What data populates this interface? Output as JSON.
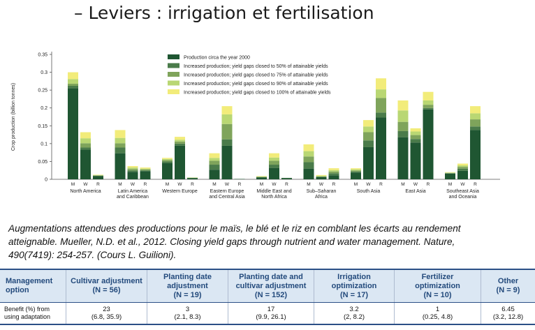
{
  "slide": {
    "title": "– Leviers : irrigation et fertilisation"
  },
  "caption": {
    "line1": "Augmentations attendues des productions pour le maïs, le blé et le riz en comblant les écarts au rendement",
    "line2": "atteignable. Mueller, N.D. et al., 2012. Closing yield gaps through nutrient and water management. Nature,",
    "line3": "490(7419): 254-257. (Cours L. Guilioni)."
  },
  "colors": {
    "base": "#1f5632",
    "gap50": "#4a7b4a",
    "gap75": "#7fa45b",
    "gap90": "#b9d773",
    "gap100": "#f2ec7a",
    "table_header_bg": "#dbe7f3",
    "table_header_text": "#234a7c",
    "table_rule": "#2b4f86"
  },
  "chart_data": {
    "type": "bar",
    "stacked": true,
    "ylabel": "Crop production (billion tonnes)",
    "ylim": [
      0,
      0.35
    ],
    "yticks": [
      "0",
      "0.05",
      "0.1",
      "0.15",
      "0.2",
      "0.25",
      "0.3",
      "0.35"
    ],
    "legend_position": "top-right",
    "crops": [
      "M",
      "W",
      "R"
    ],
    "regions": [
      {
        "name": "North America",
        "lines": [
          "North America"
        ],
        "bars": [
          [
            0.255,
            0.007,
            0.006,
            0.013,
            0.019
          ],
          [
            0.083,
            0.006,
            0.012,
            0.014,
            0.017
          ],
          [
            0.009,
            0.001,
            0.001,
            0.001,
            0.001
          ]
        ]
      },
      {
        "name": "Latin America and Caribbean",
        "lines": [
          "Latin America",
          "and Caribbean"
        ],
        "bars": [
          [
            0.073,
            0.016,
            0.012,
            0.015,
            0.022
          ],
          [
            0.021,
            0.004,
            0.004,
            0.004,
            0.004
          ],
          [
            0.023,
            0.002,
            0.003,
            0.002,
            0.003
          ]
        ]
      },
      {
        "name": "Western Europe",
        "lines": [
          "Western Europe"
        ],
        "bars": [
          [
            0.045,
            0.005,
            0.004,
            0.003,
            0.003
          ],
          [
            0.094,
            0.006,
            0.006,
            0.005,
            0.008
          ],
          [
            0.003,
            0.001,
            0.0,
            0.001,
            0.0
          ]
        ]
      },
      {
        "name": "Eastern Europe and Central Asia",
        "lines": [
          "Eastern Europe",
          "and Central Asia"
        ],
        "bars": [
          [
            0.027,
            0.014,
            0.011,
            0.008,
            0.013
          ],
          [
            0.094,
            0.018,
            0.043,
            0.027,
            0.023
          ],
          [
            0.001,
            0.0,
            0.0,
            0.0,
            0.0
          ]
        ]
      },
      {
        "name": "Middle East and North Africa",
        "lines": [
          "Middle East and",
          "North Africa"
        ],
        "bars": [
          [
            0.005,
            0.001,
            0.001,
            0.001,
            0.001
          ],
          [
            0.032,
            0.009,
            0.011,
            0.009,
            0.012
          ],
          [
            0.003,
            0.001,
            0.0,
            0.0,
            0.0
          ]
        ]
      },
      {
        "name": "Sub-Saharan Africa",
        "lines": [
          "Sub–Saharan",
          "Africa"
        ],
        "bars": [
          [
            0.03,
            0.018,
            0.016,
            0.015,
            0.019
          ],
          [
            0.006,
            0.001,
            0.001,
            0.002,
            0.002
          ],
          [
            0.011,
            0.006,
            0.005,
            0.004,
            0.005
          ]
        ]
      },
      {
        "name": "South Asia",
        "lines": [
          "South Asia"
        ],
        "bars": [
          [
            0.019,
            0.003,
            0.003,
            0.003,
            0.003
          ],
          [
            0.09,
            0.019,
            0.023,
            0.016,
            0.018
          ],
          [
            0.173,
            0.014,
            0.041,
            0.024,
            0.031
          ]
        ]
      },
      {
        "name": "East Asia",
        "lines": [
          "East Asia"
        ],
        "bars": [
          [
            0.118,
            0.017,
            0.026,
            0.032,
            0.028
          ],
          [
            0.103,
            0.01,
            0.011,
            0.01,
            0.009
          ],
          [
            0.196,
            0.004,
            0.009,
            0.012,
            0.024
          ]
        ]
      },
      {
        "name": "Southeast Asia and Oceania",
        "lines": [
          "Southeast Asia",
          "and Oceania"
        ],
        "bars": [
          [
            0.016,
            0.001,
            0.001,
            0.001,
            0.001
          ],
          [
            0.024,
            0.006,
            0.005,
            0.004,
            0.005
          ],
          [
            0.138,
            0.01,
            0.02,
            0.017,
            0.02
          ]
        ]
      }
    ],
    "legend": [
      "Production circa the year 2000",
      "Increased production; yield gaps closed to 50% of attainable yields",
      "Increased production; yield gaps closed to 75% of attainable yields",
      "Increased production; yield gaps closed to 90% of attainable yields",
      "Increased production; yield gaps closed to 100% of attainable yields"
    ]
  },
  "table": {
    "row_label_lines": [
      "Benefit (%) from",
      "using adaptation"
    ],
    "columns": [
      {
        "header_lines": [
          "Management",
          "option"
        ],
        "value": "",
        "ci": ""
      },
      {
        "header_lines": [
          "Cultivar adjustment",
          "(N = 56)"
        ],
        "value": "23",
        "ci": "(6.8, 35.9)"
      },
      {
        "header_lines": [
          "Planting date",
          "adjustment",
          "(N = 19)"
        ],
        "value": "3",
        "ci": "(2.1, 8.3)"
      },
      {
        "header_lines": [
          "Planting date and",
          "cultivar adjustment",
          "(N = 152)"
        ],
        "value": "17",
        "ci": "(9.9, 26.1)"
      },
      {
        "header_lines": [
          "Irrigation",
          "optimization",
          "(N = 17)"
        ],
        "value": "3.2",
        "ci": "(2, 8.2)"
      },
      {
        "header_lines": [
          "Fertilizer",
          "optimization",
          "(N = 10)"
        ],
        "value": "1",
        "ci": "(0.25, 4.8)"
      },
      {
        "header_lines": [
          "Other",
          "(N = 9)"
        ],
        "value": "6.45",
        "ci": "(3.2, 12.8)"
      }
    ]
  }
}
